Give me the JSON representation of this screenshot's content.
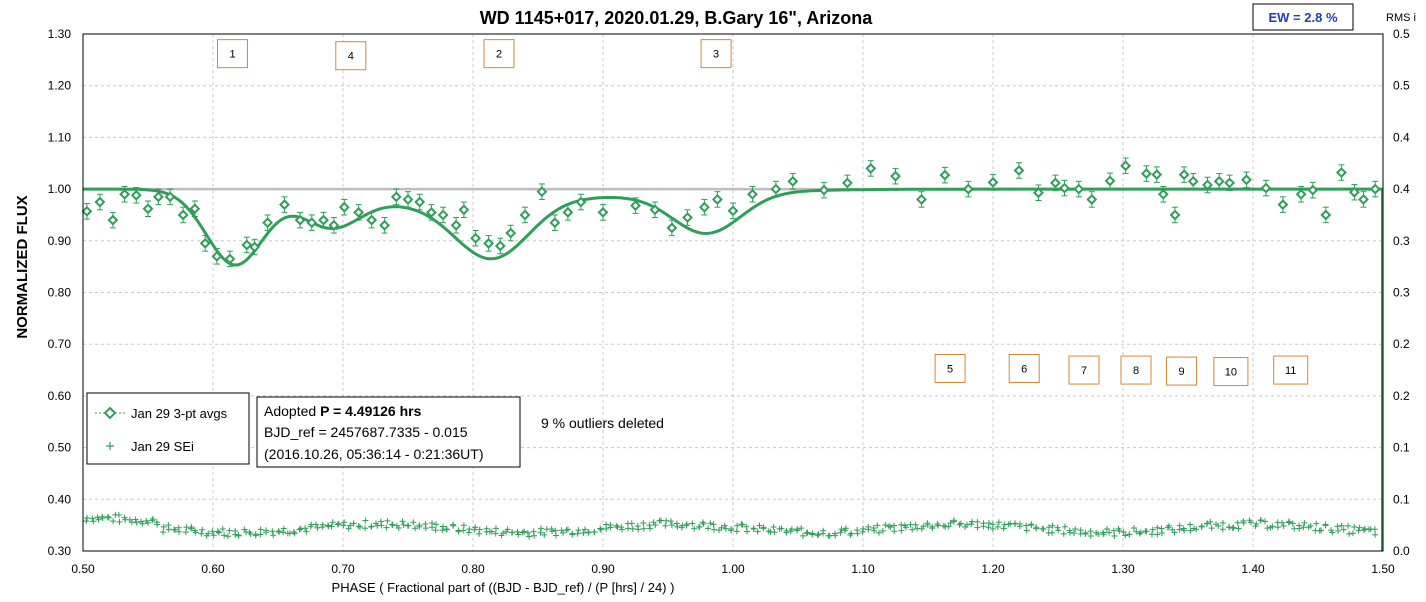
{
  "chart_data": {
    "type": "scatter",
    "title": "WD 1145+017, 2020.01.29, B.Gary 16\", Arizona",
    "xlabel": "PHASE ( Fractional part of ((BJD - BJD_ref) / (P [hrs] / 24) )",
    "ylabel": "NORMALIZED FLUX",
    "y2label": "RMS i",
    "xlim": [
      0.5,
      1.5
    ],
    "ylim": [
      0.3,
      1.3
    ],
    "y2lim": [
      0.0,
      0.5
    ],
    "x_ticks": [
      "0.50",
      "0.60",
      "0.70",
      "0.80",
      "0.90",
      "1.00",
      "1.10",
      "1.20",
      "1.30",
      "1.40",
      "1.50"
    ],
    "y_ticks": [
      "0.30",
      "0.40",
      "0.50",
      "0.60",
      "0.70",
      "0.80",
      "0.90",
      "1.00",
      "1.10",
      "1.20",
      "1.30"
    ],
    "y2_ticks": [
      "0.0",
      "0.1",
      "0.1",
      "0.2",
      "0.2",
      "0.3",
      "0.3",
      "0.4",
      "0.4",
      "0.5",
      "0.5"
    ],
    "grid": true,
    "legend_position": "bottom-left",
    "ew_label": "EW = 2.8 %",
    "info_box": {
      "line1_prefix": "Adopted ",
      "line1_bold": "P = 4.49126 hrs",
      "line2": "BJD_ref = 2457687.7335 - 0.015",
      "line3": "(2016.10.26, 05:36:14 - 0:21:36UT)"
    },
    "outliers_note": "9 % outliers deleted",
    "colors": {
      "series": "#2e9e5a",
      "baseline": "#b8b8b8",
      "ew_text": "#1f3fb0",
      "label_box": "#d08a3a"
    },
    "series": [
      {
        "name": "Jan 29 3-pt avgs",
        "marker": "diamond",
        "x": [
          0.503,
          0.513,
          0.523,
          0.532,
          0.541,
          0.55,
          0.558,
          0.567,
          0.577,
          0.586,
          0.594,
          0.603,
          0.613,
          0.626,
          0.632,
          0.642,
          0.655,
          0.667,
          0.676,
          0.685,
          0.693,
          0.701,
          0.712,
          0.722,
          0.732,
          0.741,
          0.75,
          0.759,
          0.768,
          0.777,
          0.787,
          0.793,
          0.802,
          0.812,
          0.821,
          0.829,
          0.84,
          0.853,
          0.863,
          0.873,
          0.883,
          0.9,
          0.925,
          0.94,
          0.953,
          0.965,
          0.978,
          0.988,
          1.0,
          1.015,
          1.033,
          1.046,
          1.07,
          1.088,
          1.106,
          1.125,
          1.145,
          1.163,
          1.181,
          1.2,
          1.22,
          1.235,
          1.248,
          1.255,
          1.266,
          1.276,
          1.29,
          1.302,
          1.318,
          1.326,
          1.331,
          1.34,
          1.347,
          1.354,
          1.365,
          1.374,
          1.382,
          1.395,
          1.41,
          1.423,
          1.437,
          1.446,
          1.456,
          1.468,
          1.478,
          1.485,
          1.494
        ],
        "y": [
          0.957,
          0.975,
          0.94,
          0.99,
          0.988,
          0.962,
          0.985,
          0.985,
          0.95,
          0.962,
          0.895,
          0.87,
          0.865,
          0.892,
          0.888,
          0.935,
          0.97,
          0.94,
          0.935,
          0.94,
          0.93,
          0.965,
          0.955,
          0.94,
          0.93,
          0.985,
          0.98,
          0.975,
          0.955,
          0.95,
          0.93,
          0.96,
          0.905,
          0.895,
          0.89,
          0.915,
          0.95,
          0.995,
          0.935,
          0.955,
          0.975,
          0.955,
          0.968,
          0.96,
          0.925,
          0.945,
          0.965,
          0.98,
          0.958,
          0.99,
          1.0,
          1.015,
          0.998,
          1.012,
          1.04,
          1.025,
          0.98,
          1.027,
          1.0,
          1.013,
          1.036,
          0.993,
          1.012,
          1.002,
          1.0,
          0.98,
          1.016,
          1.045,
          1.03,
          1.028,
          0.99,
          0.95,
          1.028,
          1.015,
          1.008,
          1.015,
          1.012,
          1.018,
          1.002,
          0.97,
          0.99,
          0.998,
          0.95,
          1.032,
          0.994,
          0.98,
          1.0
        ]
      },
      {
        "name": "Jan 29 SEi",
        "marker": "plus",
        "y_axis": "secondary"
      }
    ],
    "model": {
      "baseline": 1.0,
      "dips": [
        {
          "label": "1",
          "center": 0.617,
          "depth": 0.145,
          "width": 0.022
        },
        {
          "label": "4",
          "center": 0.69,
          "depth": 0.062,
          "width": 0.022
        },
        {
          "label": "2",
          "center": 0.815,
          "depth": 0.11,
          "width": 0.028
        },
        {
          "label": "3",
          "center": 0.98,
          "depth": 0.077,
          "width": 0.026
        },
        {
          "label": "",
          "center": 0.76,
          "depth": 0.025,
          "width": 0.06
        },
        {
          "label": "",
          "center": 0.9,
          "depth": 0.013,
          "width": 0.09
        }
      ]
    },
    "dip_labels": [
      {
        "text": "1",
        "x": 0.615,
        "y": 1.262
      },
      {
        "text": "4",
        "x": 0.706,
        "y": 1.258
      },
      {
        "text": "2",
        "x": 0.82,
        "y": 1.262
      },
      {
        "text": "3",
        "x": 0.987,
        "y": 1.262
      },
      {
        "text": "5",
        "x": 1.167,
        "y": 0.653
      },
      {
        "text": "6",
        "x": 1.224,
        "y": 0.653
      },
      {
        "text": "7",
        "x": 1.27,
        "y": 0.65
      },
      {
        "text": "8",
        "x": 1.31,
        "y": 0.65
      },
      {
        "text": "9",
        "x": 1.345,
        "y": 0.648
      },
      {
        "text": "10",
        "x": 1.383,
        "y": 0.647
      },
      {
        "text": "11",
        "x": 1.429,
        "y": 0.65
      }
    ]
  }
}
